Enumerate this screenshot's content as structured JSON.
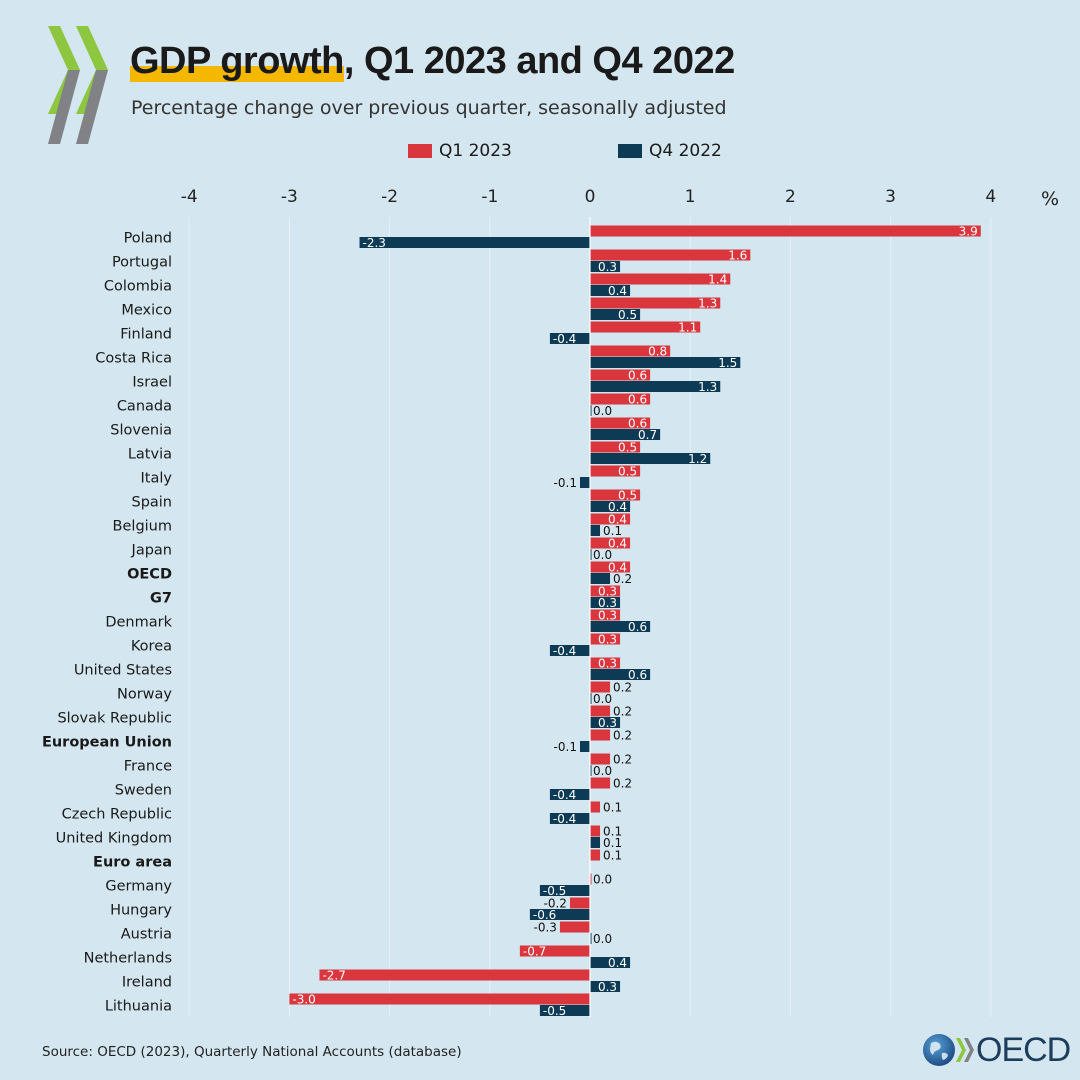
{
  "header": {
    "title_highlight": "GDP growth",
    "title_rest": ", Q1 2023 and Q4 2022",
    "subtitle": "Percentage change over previous quarter, seasonally adjusted"
  },
  "colors": {
    "q1_2023": "#d9363e",
    "q4_2022": "#0d3b55",
    "background": "#d4e6ef",
    "highlight": "#f5b800",
    "logo_green": "#8dc63f",
    "logo_grey": "#808285"
  },
  "footer": {
    "source": "Source: OECD (2023), Quarterly National Accounts (database)",
    "logo_text": "OECD"
  },
  "chart_data": {
    "type": "bar",
    "orientation": "horizontal",
    "title": "GDP growth, Q1 2023 and Q4 2022",
    "subtitle": "Percentage change over previous quarter, seasonally adjusted",
    "unit": "%",
    "xlim": [
      -4,
      4
    ],
    "xticks": [
      -4,
      -3,
      -2,
      -1,
      0,
      1,
      2,
      3,
      4
    ],
    "grid": true,
    "legend_position": "top",
    "categories": [
      "Poland",
      "Portugal",
      "Colombia",
      "Mexico",
      "Finland",
      "Costa Rica",
      "Israel",
      "Canada",
      "Slovenia",
      "Latvia",
      "Italy",
      "Spain",
      "Belgium",
      "Japan",
      "OECD",
      "G7",
      "Denmark",
      "Korea",
      "United States",
      "Norway",
      "Slovak Republic",
      "European Union",
      "France",
      "Sweden",
      "Czech Republic",
      "United Kingdom",
      "Euro area",
      "Germany",
      "Hungary",
      "Austria",
      "Netherlands",
      "Ireland",
      "Lithuania"
    ],
    "bold_categories": [
      "OECD",
      "G7",
      "European Union",
      "Euro area"
    ],
    "series": [
      {
        "name": "Q1 2023",
        "values": [
          3.9,
          1.6,
          1.4,
          1.3,
          1.1,
          0.8,
          0.6,
          0.6,
          0.6,
          0.5,
          0.5,
          0.5,
          0.4,
          0.4,
          0.4,
          0.3,
          0.3,
          0.3,
          0.3,
          0.2,
          0.2,
          0.2,
          0.2,
          0.2,
          0.1,
          0.1,
          0.1,
          0.0,
          -0.2,
          -0.3,
          -0.7,
          -2.7,
          -3.0
        ]
      },
      {
        "name": "Q4 2022",
        "values": [
          -2.3,
          0.3,
          0.4,
          0.5,
          -0.4,
          1.5,
          1.3,
          0.0,
          0.7,
          1.2,
          -0.1,
          0.4,
          0.1,
          0.0,
          0.2,
          0.3,
          0.6,
          -0.4,
          0.6,
          0.0,
          0.3,
          -0.1,
          0.0,
          -0.4,
          -0.4,
          0.1,
          null,
          -0.5,
          -0.6,
          0.0,
          0.4,
          0.3,
          -0.5
        ]
      }
    ]
  }
}
